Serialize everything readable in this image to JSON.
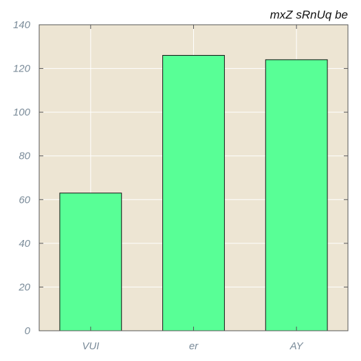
{
  "chart_data": {
    "type": "bar",
    "title": "mxZ sRnUq be",
    "categories": [
      "VUI",
      "er",
      "AY"
    ],
    "values": [
      63,
      126,
      124
    ],
    "ylim": [
      0,
      140
    ],
    "yticks": [
      0,
      20,
      40,
      60,
      80,
      100,
      120,
      140
    ],
    "grid": true,
    "colors": {
      "bar": "#58ff96",
      "bar_edge": "#111111",
      "plot_background": "#ede5d3",
      "grid": "#ffffff",
      "axis": "#555555",
      "tick_label": "#7a8b99"
    }
  }
}
